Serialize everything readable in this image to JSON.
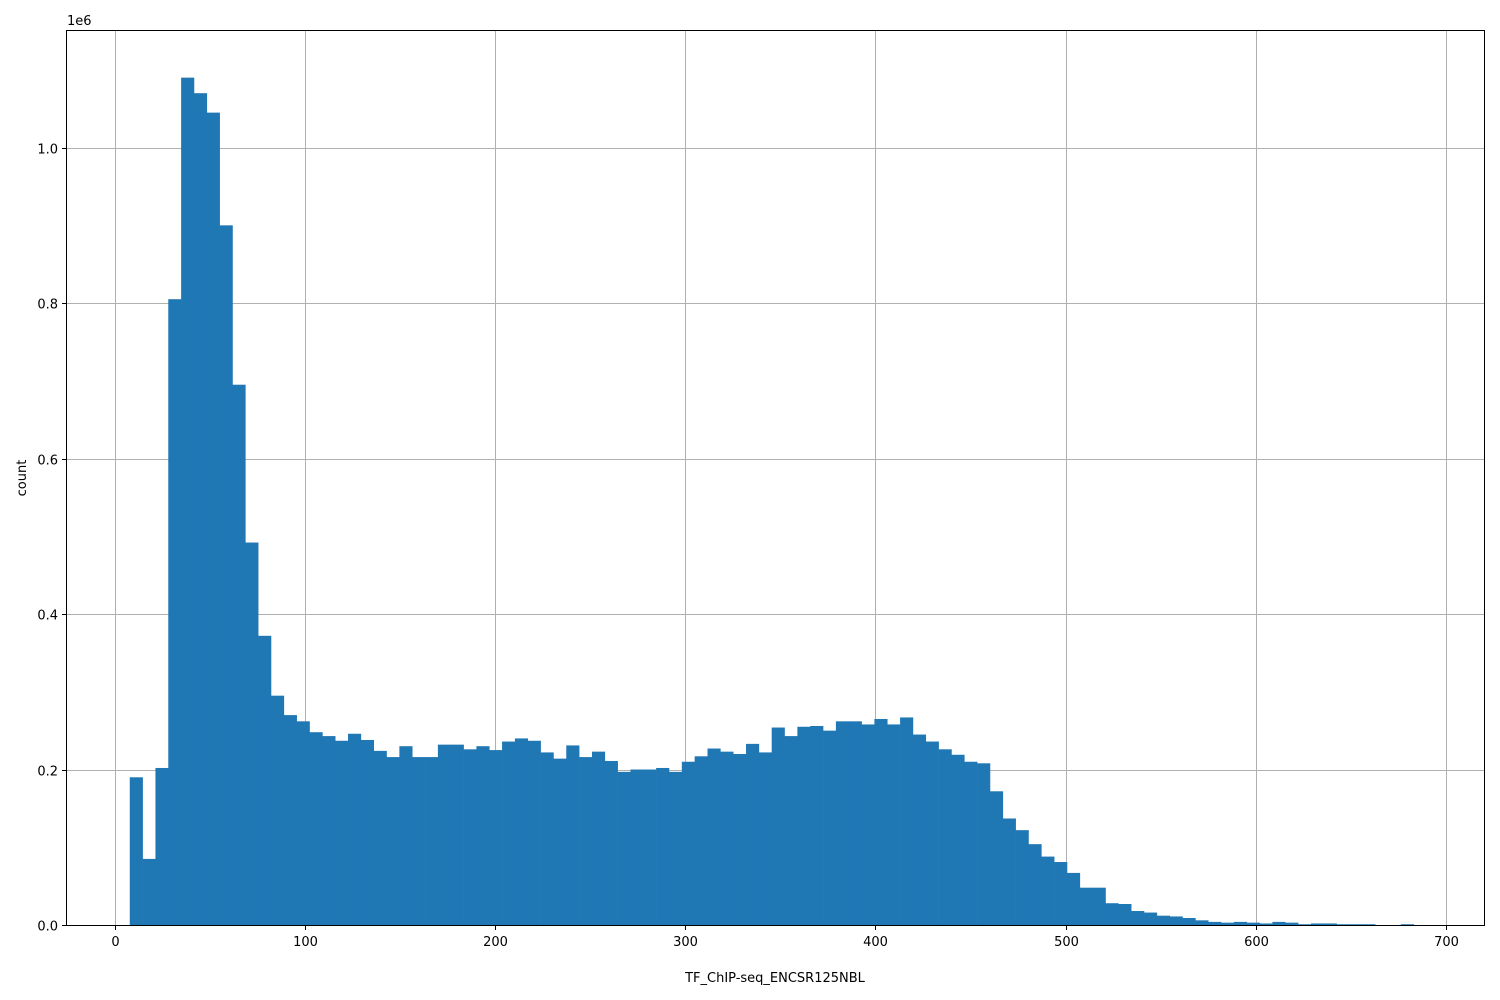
{
  "chart_data": {
    "type": "bar",
    "title": "",
    "xlabel": "TF_ChIP-seq_ENCSR125NBL",
    "ylabel": "count",
    "y_multiplier_label": "1e6",
    "xlim": [
      -25,
      720
    ],
    "ylim": [
      0,
      1.15
    ],
    "grid": true,
    "bar_color": "#1f77b4",
    "x_ticks": [
      0,
      100,
      200,
      300,
      400,
      500,
      600,
      700
    ],
    "y_ticks": [
      0.0,
      0.2,
      0.4,
      0.6,
      0.8,
      1.0
    ],
    "x_tick_labels": [
      "0",
      "100",
      "200",
      "300",
      "400",
      "500",
      "600",
      "700"
    ],
    "y_tick_labels": [
      "0.0",
      "0.2",
      "0.4",
      "0.6",
      "0.8",
      "1.0"
    ],
    "bin_start": 8,
    "bin_width": 6.75,
    "values": [
      0.19,
      0.085,
      0.202,
      0.805,
      1.09,
      1.07,
      1.045,
      0.9,
      0.695,
      0.492,
      0.372,
      0.295,
      0.27,
      0.262,
      0.248,
      0.243,
      0.237,
      0.246,
      0.238,
      0.224,
      0.216,
      0.23,
      0.216,
      0.216,
      0.232,
      0.232,
      0.226,
      0.23,
      0.225,
      0.236,
      0.24,
      0.237,
      0.222,
      0.214,
      0.231,
      0.216,
      0.223,
      0.211,
      0.197,
      0.2,
      0.2,
      0.202,
      0.197,
      0.21,
      0.217,
      0.227,
      0.223,
      0.22,
      0.233,
      0.222,
      0.254,
      0.243,
      0.255,
      0.256,
      0.25,
      0.262,
      0.262,
      0.258,
      0.265,
      0.258,
      0.267,
      0.245,
      0.236,
      0.226,
      0.219,
      0.21,
      0.208,
      0.172,
      0.137,
      0.122,
      0.104,
      0.088,
      0.081,
      0.067,
      0.048,
      0.048,
      0.028,
      0.027,
      0.018,
      0.016,
      0.012,
      0.011,
      0.009,
      0.006,
      0.004,
      0.003,
      0.004,
      0.003,
      0.002,
      0.004,
      0.003,
      0.001,
      0.002,
      0.002,
      0.001,
      0.001,
      0.001,
      0.0,
      0.0,
      0.001
    ]
  }
}
